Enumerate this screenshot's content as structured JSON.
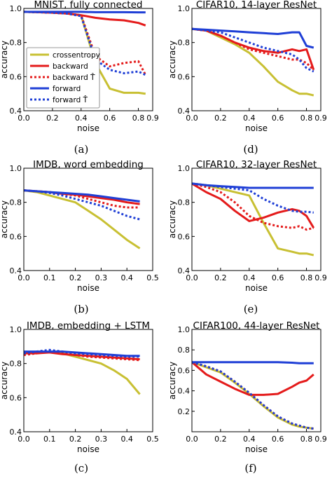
{
  "colors": {
    "crossentropy": "#c8c033",
    "backward": "#e41b1b",
    "forward": "#1f3fd6"
  },
  "legend": [
    {
      "key": "crossentropy",
      "label": "crossentropy",
      "style": "solid"
    },
    {
      "key": "backward",
      "label": "backward",
      "style": "solid"
    },
    {
      "key": "backward_That",
      "label": "backward T̂",
      "style": "dotted",
      "color_key": "backward"
    },
    {
      "key": "forward",
      "label": "forward",
      "style": "solid"
    },
    {
      "key": "forward_That",
      "label": "forward T̂",
      "style": "dotted",
      "color_key": "forward"
    }
  ],
  "chart_data": [
    {
      "type": "line",
      "caption": "(a)",
      "title": "MNIST, fully connected",
      "xlabel": "noise",
      "ylabel": "accuracy",
      "xlim": [
        0.0,
        0.9
      ],
      "ylim": [
        0.4,
        1.0
      ],
      "xticks": [
        "0.0",
        "0.2",
        "0.4",
        "0.6",
        "0.8",
        "0.9"
      ],
      "xtick_values": [
        0.0,
        0.2,
        0.4,
        0.6,
        0.8,
        0.9
      ],
      "yticks": [
        "0.4",
        "0.6",
        "0.8",
        "1.0"
      ],
      "ytick_values": [
        0.4,
        0.6,
        0.8,
        1.0
      ],
      "legend": true,
      "legend_position": "center-left",
      "x": [
        0.0,
        0.1,
        0.2,
        0.3,
        0.4,
        0.5,
        0.6,
        0.7,
        0.8,
        0.85
      ],
      "series": [
        {
          "key": "crossentropy",
          "style": "solid",
          "values": [
            0.98,
            0.978,
            0.975,
            0.97,
            0.96,
            0.68,
            0.53,
            0.505,
            0.505,
            0.5
          ]
        },
        {
          "key": "backward",
          "style": "solid",
          "values": [
            0.98,
            0.978,
            0.975,
            0.97,
            0.96,
            0.945,
            0.935,
            0.93,
            0.915,
            0.9
          ]
        },
        {
          "key": "backward_That",
          "style": "dotted",
          "values": [
            0.98,
            0.978,
            0.975,
            0.97,
            0.96,
            0.72,
            0.66,
            0.68,
            0.69,
            0.61
          ]
        },
        {
          "key": "forward",
          "style": "solid",
          "values": [
            0.98,
            0.98,
            0.98,
            0.98,
            0.98,
            0.978,
            0.978,
            0.978,
            0.977,
            0.977
          ]
        },
        {
          "key": "forward_That",
          "style": "dotted",
          "values": [
            0.98,
            0.978,
            0.975,
            0.97,
            0.955,
            0.7,
            0.64,
            0.62,
            0.63,
            0.61
          ]
        }
      ]
    },
    {
      "type": "line",
      "caption": "(d)",
      "title": "CIFAR10, 14-layer ResNet",
      "xlabel": "noise",
      "ylabel": "accuracy",
      "xlim": [
        0.0,
        0.9
      ],
      "ylim": [
        0.4,
        1.0
      ],
      "xticks": [
        "0.0",
        "0.2",
        "0.4",
        "0.6",
        "0.8",
        "0.9"
      ],
      "xtick_values": [
        0.0,
        0.2,
        0.4,
        0.6,
        0.8,
        0.9
      ],
      "yticks": [
        "0.4",
        "0.6",
        "0.8",
        "1.0"
      ],
      "ytick_values": [
        0.4,
        0.6,
        0.8,
        1.0
      ],
      "legend": false,
      "x": [
        0.0,
        0.1,
        0.2,
        0.3,
        0.4,
        0.5,
        0.6,
        0.7,
        0.75,
        0.8,
        0.85
      ],
      "series": [
        {
          "key": "crossentropy",
          "style": "solid",
          "values": [
            0.88,
            0.87,
            0.83,
            0.79,
            0.74,
            0.66,
            0.57,
            0.52,
            0.5,
            0.5,
            0.49
          ]
        },
        {
          "key": "backward",
          "style": "solid",
          "values": [
            0.88,
            0.87,
            0.84,
            0.8,
            0.77,
            0.75,
            0.74,
            0.76,
            0.75,
            0.76,
            0.64
          ]
        },
        {
          "key": "backward_That",
          "style": "dotted",
          "values": [
            0.88,
            0.87,
            0.84,
            0.8,
            0.76,
            0.74,
            0.72,
            0.7,
            0.7,
            0.68,
            0.64
          ]
        },
        {
          "key": "forward",
          "style": "solid",
          "values": [
            0.88,
            0.875,
            0.87,
            0.865,
            0.86,
            0.855,
            0.85,
            0.86,
            0.86,
            0.78,
            0.77
          ]
        },
        {
          "key": "forward_That",
          "style": "dotted",
          "values": [
            0.88,
            0.87,
            0.86,
            0.83,
            0.8,
            0.77,
            0.75,
            0.73,
            0.7,
            0.65,
            0.63
          ]
        }
      ]
    },
    {
      "type": "line",
      "caption": "(b)",
      "title": "IMDB, word embedding",
      "xlabel": "noise",
      "ylabel": "accuracy",
      "xlim": [
        0.0,
        0.5
      ],
      "ylim": [
        0.4,
        1.0
      ],
      "xticks": [
        "0.0",
        "0.1",
        "0.2",
        "0.3",
        "0.4",
        "0.5"
      ],
      "xtick_values": [
        0.0,
        0.1,
        0.2,
        0.3,
        0.4,
        0.5
      ],
      "yticks": [
        "0.4",
        "0.6",
        "0.8",
        "1.0"
      ],
      "ytick_values": [
        0.4,
        0.6,
        0.8,
        1.0
      ],
      "legend": false,
      "x": [
        0.0,
        0.05,
        0.1,
        0.15,
        0.2,
        0.25,
        0.3,
        0.35,
        0.4,
        0.45
      ],
      "series": [
        {
          "key": "crossentropy",
          "style": "solid",
          "values": [
            0.87,
            0.86,
            0.84,
            0.82,
            0.8,
            0.75,
            0.7,
            0.64,
            0.58,
            0.53
          ]
        },
        {
          "key": "backward",
          "style": "solid",
          "values": [
            0.87,
            0.865,
            0.86,
            0.85,
            0.845,
            0.835,
            0.825,
            0.815,
            0.8,
            0.79
          ]
        },
        {
          "key": "backward_That",
          "style": "dotted",
          "values": [
            0.87,
            0.865,
            0.86,
            0.85,
            0.84,
            0.82,
            0.8,
            0.78,
            0.77,
            0.77
          ]
        },
        {
          "key": "forward",
          "style": "solid",
          "values": [
            0.87,
            0.865,
            0.86,
            0.855,
            0.85,
            0.845,
            0.835,
            0.825,
            0.815,
            0.805
          ]
        },
        {
          "key": "forward_That",
          "style": "dotted",
          "values": [
            0.87,
            0.865,
            0.855,
            0.84,
            0.82,
            0.8,
            0.78,
            0.75,
            0.72,
            0.7
          ]
        }
      ]
    },
    {
      "type": "line",
      "caption": "(e)",
      "title": "CIFAR10, 32-layer ResNet",
      "xlabel": "noise",
      "ylabel": "accuracy",
      "xlim": [
        0.0,
        0.9
      ],
      "ylim": [
        0.4,
        1.0
      ],
      "xticks": [
        "0.0",
        "0.2",
        "0.4",
        "0.6",
        "0.8",
        "0.9"
      ],
      "xtick_values": [
        0.0,
        0.2,
        0.4,
        0.6,
        0.8,
        0.9
      ],
      "yticks": [
        "0.4",
        "0.6",
        "0.8",
        "1.0"
      ],
      "ytick_values": [
        0.4,
        0.6,
        0.8,
        1.0
      ],
      "legend": false,
      "x": [
        0.0,
        0.1,
        0.2,
        0.3,
        0.4,
        0.5,
        0.6,
        0.7,
        0.75,
        0.8,
        0.85
      ],
      "series": [
        {
          "key": "crossentropy",
          "style": "solid",
          "values": [
            0.91,
            0.9,
            0.88,
            0.86,
            0.84,
            0.68,
            0.53,
            0.51,
            0.5,
            0.5,
            0.49
          ]
        },
        {
          "key": "backward",
          "style": "solid",
          "values": [
            0.91,
            0.86,
            0.82,
            0.75,
            0.69,
            0.71,
            0.74,
            0.76,
            0.75,
            0.72,
            0.65
          ]
        },
        {
          "key": "backward_That",
          "style": "dotted",
          "values": [
            0.91,
            0.89,
            0.86,
            0.8,
            0.72,
            0.68,
            0.66,
            0.65,
            0.66,
            0.64,
            0.65
          ]
        },
        {
          "key": "forward",
          "style": "solid",
          "values": [
            0.91,
            0.9,
            0.895,
            0.89,
            0.885,
            0.885,
            0.885,
            0.885,
            0.885,
            0.885,
            0.885
          ]
        },
        {
          "key": "forward_That",
          "style": "dotted",
          "values": [
            0.91,
            0.9,
            0.89,
            0.88,
            0.87,
            0.82,
            0.78,
            0.75,
            0.745,
            0.745,
            0.74
          ]
        }
      ]
    },
    {
      "type": "line",
      "caption": "(c)",
      "title": "IMDB, embedding + LSTM",
      "xlabel": "noise",
      "ylabel": "accuracy",
      "xlim": [
        0.0,
        0.5
      ],
      "ylim": [
        0.4,
        1.0
      ],
      "xticks": [
        "0.0",
        "0.1",
        "0.2",
        "0.3",
        "0.4",
        "0.5"
      ],
      "xtick_values": [
        0.0,
        0.1,
        0.2,
        0.3,
        0.4,
        0.5
      ],
      "yticks": [
        "0.4",
        "0.6",
        "0.8",
        "1.0"
      ],
      "ytick_values": [
        0.4,
        0.6,
        0.8,
        1.0
      ],
      "legend": false,
      "x": [
        0.0,
        0.05,
        0.1,
        0.15,
        0.2,
        0.25,
        0.3,
        0.35,
        0.4,
        0.45
      ],
      "series": [
        {
          "key": "crossentropy",
          "style": "solid",
          "values": [
            0.86,
            0.865,
            0.87,
            0.86,
            0.84,
            0.82,
            0.8,
            0.76,
            0.71,
            0.62
          ]
        },
        {
          "key": "backward",
          "style": "solid",
          "values": [
            0.86,
            0.86,
            0.865,
            0.855,
            0.85,
            0.845,
            0.84,
            0.835,
            0.83,
            0.825
          ]
        },
        {
          "key": "backward_That",
          "style": "dotted",
          "values": [
            0.85,
            0.86,
            0.87,
            0.86,
            0.85,
            0.84,
            0.835,
            0.83,
            0.825,
            0.82
          ]
        },
        {
          "key": "forward",
          "style": "solid",
          "values": [
            0.87,
            0.87,
            0.87,
            0.87,
            0.865,
            0.86,
            0.855,
            0.85,
            0.845,
            0.845
          ]
        },
        {
          "key": "forward_That",
          "style": "dotted",
          "values": [
            0.86,
            0.87,
            0.88,
            0.87,
            0.86,
            0.855,
            0.85,
            0.845,
            0.84,
            0.84
          ]
        }
      ]
    },
    {
      "type": "line",
      "caption": "(f)",
      "title": "CIFAR100, 44-layer ResNet",
      "xlabel": "noise",
      "ylabel": "accuracy",
      "xlim": [
        0.0,
        0.9
      ],
      "ylim": [
        0.0,
        1.0
      ],
      "xticks": [
        "0.0",
        "0.2",
        "0.4",
        "0.6",
        "0.8",
        "0.9"
      ],
      "xtick_values": [
        0.0,
        0.2,
        0.4,
        0.6,
        0.8,
        0.9
      ],
      "yticks": [
        "0.2",
        "0.4",
        "0.6",
        "0.8",
        "1.0"
      ],
      "ytick_values": [
        0.2,
        0.4,
        0.6,
        0.8,
        1.0
      ],
      "legend": false,
      "x": [
        0.0,
        0.1,
        0.2,
        0.3,
        0.4,
        0.5,
        0.6,
        0.7,
        0.75,
        0.8,
        0.85
      ],
      "series": [
        {
          "key": "crossentropy",
          "style": "solid",
          "values": [
            0.68,
            0.63,
            0.58,
            0.48,
            0.37,
            0.25,
            0.14,
            0.07,
            0.05,
            0.04,
            0.03
          ]
        },
        {
          "key": "backward",
          "style": "solid",
          "values": [
            0.68,
            0.56,
            0.49,
            0.42,
            0.36,
            0.36,
            0.37,
            0.44,
            0.48,
            0.5,
            0.56
          ]
        },
        {
          "key": "backward_That",
          "style": "dotted",
          "values": [
            0.68,
            0.64,
            0.59,
            0.49,
            0.38,
            0.26,
            0.15,
            0.08,
            0.06,
            0.04,
            0.03
          ]
        },
        {
          "key": "forward",
          "style": "solid",
          "values": [
            0.68,
            0.68,
            0.68,
            0.68,
            0.68,
            0.68,
            0.68,
            0.675,
            0.67,
            0.67,
            0.67
          ]
        },
        {
          "key": "forward_That",
          "style": "dotted",
          "values": [
            0.68,
            0.64,
            0.59,
            0.49,
            0.38,
            0.26,
            0.15,
            0.08,
            0.06,
            0.04,
            0.03
          ]
        }
      ]
    }
  ]
}
